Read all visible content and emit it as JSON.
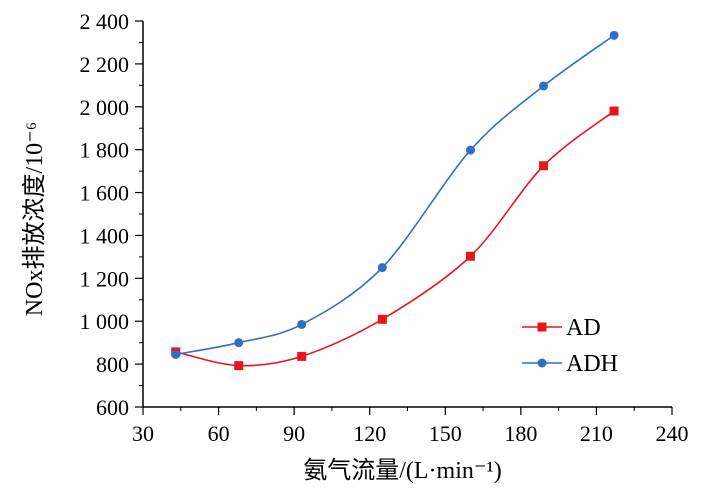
{
  "chart_data": {
    "type": "line",
    "xlabel": "氨气流量/(L·min⁻¹)",
    "ylabel": "NOx排放浓度/10⁻⁶",
    "xlim": [
      30,
      240
    ],
    "ylim": [
      600,
      2400
    ],
    "xticks": [
      30,
      60,
      90,
      120,
      150,
      180,
      210,
      240
    ],
    "xtick_labels": [
      "30",
      "60",
      "90",
      "120",
      "150",
      "180",
      "210",
      "240"
    ],
    "yticks": [
      600,
      800,
      1000,
      1200,
      1400,
      1600,
      1800,
      2000,
      2200,
      2400
    ],
    "ytick_labels": [
      "600",
      "800",
      "1 000",
      "1 200",
      "1 400",
      "1 600",
      "1 800",
      "2 000",
      "2 200",
      "2 400"
    ],
    "grid": false,
    "legend_position": "bottom-right",
    "series": [
      {
        "name": "AD",
        "color": "#e8141e",
        "marker": "square",
        "x": [
          43,
          68,
          93,
          125,
          160,
          189,
          217
        ],
        "y": [
          857,
          793,
          836,
          1009,
          1303,
          1725,
          1980
        ]
      },
      {
        "name": "ADH",
        "color": "#2f6fc5",
        "marker": "circle",
        "x": [
          43,
          68,
          93,
          125,
          160,
          189,
          217
        ],
        "y": [
          845,
          900,
          985,
          1250,
          1798,
          2097,
          2333
        ]
      }
    ]
  }
}
